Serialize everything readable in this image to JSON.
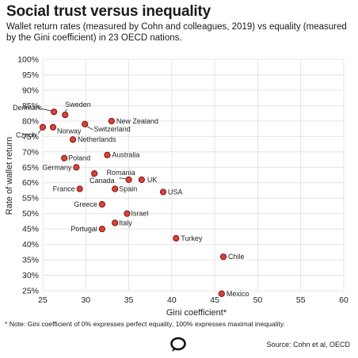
{
  "header": {
    "title": "Social trust versus inequality",
    "subtitle": "Wallet return rates (measured by Cohn and colleagues, 2019) vs equality (measured by the Gini coefficient) in 23 OECD nations."
  },
  "footer": {
    "note": "* Note: Gini coefficient of 0% expresses perfect equality, 100% expresses maximal inequality.",
    "source": "Source: Cohn et al, OECD",
    "logo_icon": "conversation-speech-bubble-icon"
  },
  "chart_data": {
    "type": "scatter",
    "xlabel": "Gini coefficient*",
    "ylabel": "Rate of wallet return",
    "xlim": [
      25,
      60
    ],
    "ylim": [
      25,
      100
    ],
    "x_ticks": [
      25,
      30,
      35,
      40,
      45,
      50,
      55,
      60
    ],
    "y_ticks": [
      "25%",
      "30%",
      "35%",
      "40%",
      "45%",
      "50%",
      "55%",
      "60%",
      "65%",
      "70%",
      "75%",
      "80%",
      "85%",
      "90%",
      "95%",
      "100%"
    ],
    "grid": true,
    "point_color": "#e0403a",
    "points": [
      {
        "label": "Denmark",
        "x": 26.3,
        "y": 83
      },
      {
        "label": "Sweden",
        "x": 27.6,
        "y": 82
      },
      {
        "label": "New Zealand",
        "x": 33.0,
        "y": 80
      },
      {
        "label": "Czech",
        "x": 25.0,
        "y": 78
      },
      {
        "label": "Norway",
        "x": 26.2,
        "y": 78
      },
      {
        "label": "Switzerland",
        "x": 29.9,
        "y": 79
      },
      {
        "label": "Netherlands",
        "x": 28.5,
        "y": 74
      },
      {
        "label": "Poland",
        "x": 27.5,
        "y": 68
      },
      {
        "label": "Australia",
        "x": 32.5,
        "y": 69
      },
      {
        "label": "Germany",
        "x": 28.9,
        "y": 65
      },
      {
        "label": "Canada",
        "x": 31.0,
        "y": 63
      },
      {
        "label": "Romania",
        "x": 35.0,
        "y": 61
      },
      {
        "label": "UK",
        "x": 36.5,
        "y": 61
      },
      {
        "label": "France",
        "x": 29.3,
        "y": 58
      },
      {
        "label": "Spain",
        "x": 33.4,
        "y": 58
      },
      {
        "label": "USA",
        "x": 39.0,
        "y": 57
      },
      {
        "label": "Greece",
        "x": 31.9,
        "y": 53
      },
      {
        "label": "Israel",
        "x": 34.8,
        "y": 50
      },
      {
        "label": "Italy",
        "x": 33.4,
        "y": 47
      },
      {
        "label": "Portugal",
        "x": 31.9,
        "y": 45
      },
      {
        "label": "Turkey",
        "x": 40.5,
        "y": 42
      },
      {
        "label": "Chile",
        "x": 46.0,
        "y": 36
      },
      {
        "label": "Mexico",
        "x": 45.8,
        "y": 24
      }
    ]
  }
}
